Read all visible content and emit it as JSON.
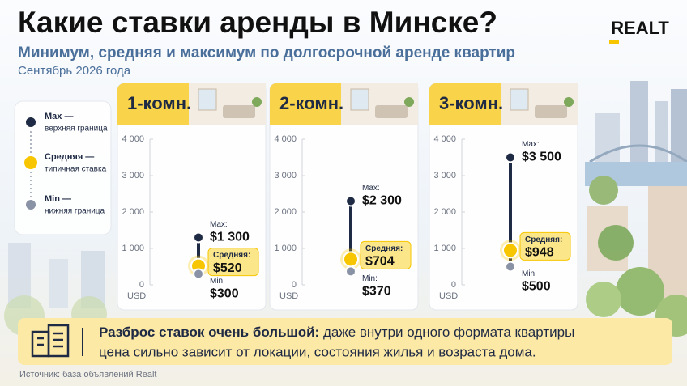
{
  "title": "Какие ставки аренды в Минске?",
  "subtitle": "Минимум, средняя и максимум по долгосрочной аренде квартир",
  "date": "Сентябрь 2026 года",
  "logo": "REALT",
  "legend": [
    {
      "label": "Max —",
      "desc": "верхняя граница",
      "color": "#1f2a44"
    },
    {
      "label": "Средняя —",
      "desc": "типичная ставка",
      "color": "#f7c600"
    },
    {
      "label": "Min —",
      "desc": "нижняя граница",
      "color": "#8a93a6"
    }
  ],
  "chart_data": [
    {
      "type": "range",
      "title": "1-комн.",
      "ylabel": "USD",
      "ylim": [
        0,
        4000
      ],
      "yticks": [
        0,
        {
          "value": 1000,
          "label": "1 000"
        },
        {
          "value": 2000,
          "label": "2 000"
        },
        {
          "value": 3000,
          "label": "3 000"
        },
        {
          "value": 4000,
          "label": "4 000"
        }
      ],
      "series": [
        {
          "name": "Max:",
          "color": "#1f2a44",
          "values": [
            1300
          ],
          "value_labels": [
            "$1 300"
          ]
        },
        {
          "name": "Средняя:",
          "color": "#f7c600",
          "values": [
            520
          ],
          "value_labels": [
            "$520"
          ]
        },
        {
          "name": "Min:",
          "color": "#8a93a6",
          "values": [
            300
          ],
          "value_labels": [
            "$300"
          ]
        }
      ]
    },
    {
      "type": "range",
      "title": "2-комн.",
      "ylabel": "USD",
      "ylim": [
        0,
        4000
      ],
      "yticks": [
        0,
        {
          "value": 1000,
          "label": "1 000"
        },
        {
          "value": 2000,
          "label": "2 000"
        },
        {
          "value": 3000,
          "label": "3 000"
        },
        {
          "value": 4000,
          "label": "4 000"
        }
      ],
      "series": [
        {
          "name": "Max:",
          "color": "#1f2a44",
          "values": [
            2300
          ],
          "value_labels": [
            "$2 300"
          ]
        },
        {
          "name": "Средняя:",
          "color": "#f7c600",
          "values": [
            704
          ],
          "value_labels": [
            "$704"
          ]
        },
        {
          "name": "Min:",
          "color": "#8a93a6",
          "values": [
            370
          ],
          "value_labels": [
            "$370"
          ]
        }
      ]
    },
    {
      "type": "range",
      "title": "3-комн.",
      "ylabel": "USD",
      "ylim": [
        0,
        4000
      ],
      "yticks": [
        0,
        {
          "value": 1000,
          "label": "1 000"
        },
        {
          "value": 2000,
          "label": "2 000"
        },
        {
          "value": 3000,
          "label": "3 000"
        },
        {
          "value": 4000,
          "label": "4 000"
        }
      ],
      "series": [
        {
          "name": "Max:",
          "color": "#1f2a44",
          "values": [
            3500
          ],
          "value_labels": [
            "$3 500"
          ]
        },
        {
          "name": "Средняя:",
          "color": "#f7c600",
          "values": [
            948
          ],
          "value_labels": [
            "$948"
          ]
        },
        {
          "name": "Min:",
          "color": "#8a93a6",
          "values": [
            500
          ],
          "value_labels": [
            "$500"
          ]
        }
      ]
    }
  ],
  "note": {
    "bold": "Разброс ставок очень большой:",
    "line1": " даже внутри одного формата квартиры",
    "line2": "цена сильно зависит от локации, состояния жилья и возраста дома."
  },
  "source": "Источник: база объявлений Realt"
}
